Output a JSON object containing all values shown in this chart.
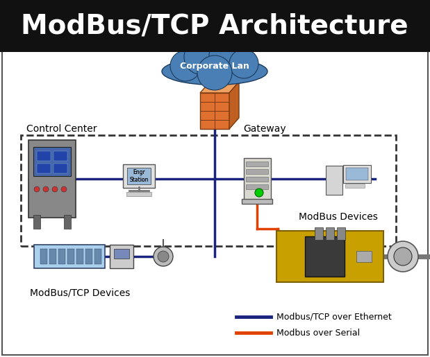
{
  "title": "ModBus/TCP Architecture",
  "title_fontsize": 28,
  "title_bg": "#111111",
  "title_color": "#ffffff",
  "bg_color": "#ffffff",
  "cloud_label": "Corporate Lan",
  "cloud_color": "#4a7fb5",
  "ethernet_color": "#1a237e",
  "serial_color": "#e04000",
  "ethernet_lw": 2.5,
  "serial_lw": 2.5,
  "legend_eth_label": "Modbus/TCP over Ethernet",
  "legend_ser_label": "Modbus over Serial"
}
